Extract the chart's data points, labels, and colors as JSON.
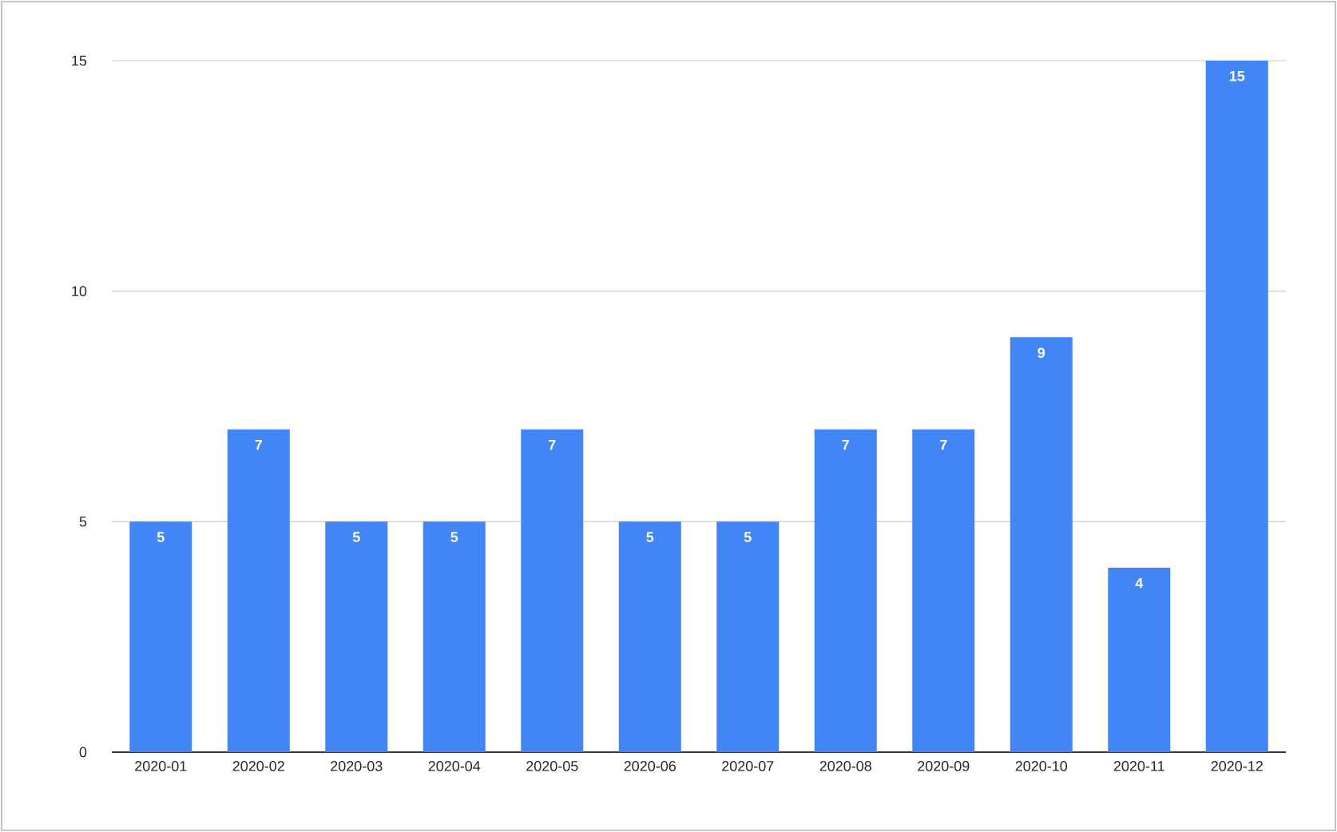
{
  "chart_data": {
    "type": "bar",
    "categories": [
      "2020-01",
      "2020-02",
      "2020-03",
      "2020-04",
      "2020-05",
      "2020-06",
      "2020-07",
      "2020-08",
      "2020-09",
      "2020-10",
      "2020-11",
      "2020-12"
    ],
    "values": [
      5,
      7,
      5,
      5,
      7,
      5,
      5,
      7,
      7,
      9,
      4,
      15
    ],
    "color": "#4285f4",
    "ylim": [
      0,
      15
    ],
    "yticks": [
      0,
      5,
      10,
      15
    ],
    "grid": "y",
    "data_labels": true
  }
}
